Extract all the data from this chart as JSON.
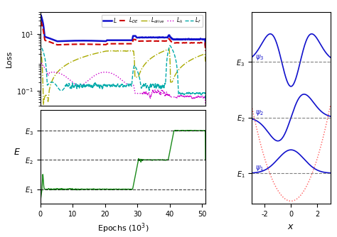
{
  "fig_width": 4.74,
  "fig_height": 3.34,
  "dpi": 100,
  "loss_ylim": [
    0.03,
    60
  ],
  "epoch_xlim": [
    0,
    51
  ],
  "epoch_xticks": [
    0,
    10,
    20,
    30,
    40,
    50
  ],
  "E1": 0.5,
  "E2": 1.5,
  "E3": 2.5,
  "E_ylim": [
    0.0,
    3.2
  ],
  "potential_color": "#ff4444",
  "wavefunction_color": "#1111cc",
  "loss_L_color": "#1111cc",
  "loss_LDE_color": "#cc0000",
  "loss_Ldrive_color": "#aaaa00",
  "loss_Llambda_color": "#cc00cc",
  "loss_Lf_color": "#00aaaa",
  "green_color": "#1a8a1a"
}
